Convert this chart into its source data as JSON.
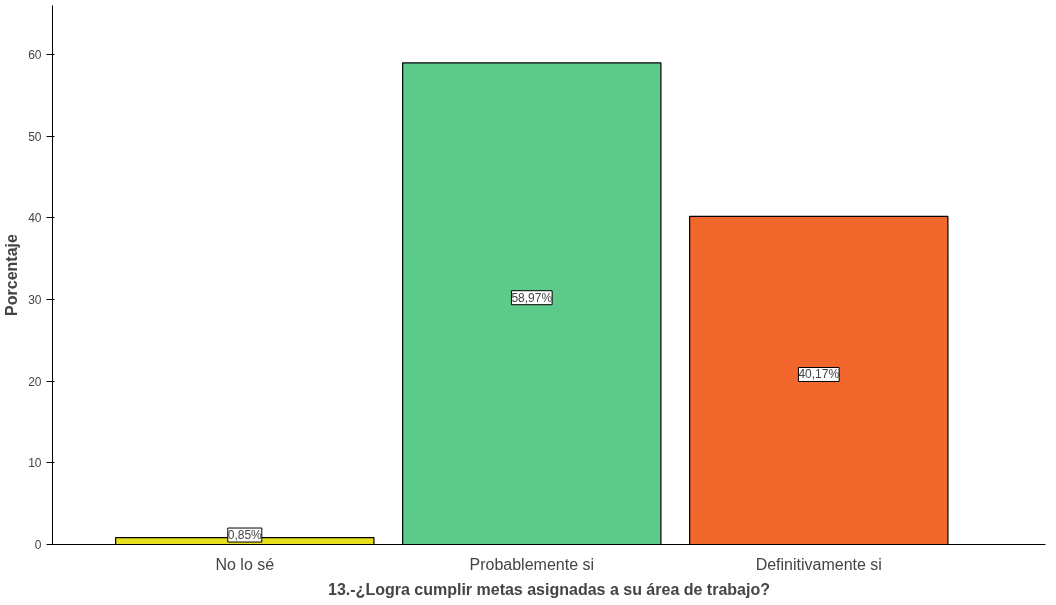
{
  "chart_data": {
    "type": "bar",
    "xlabel": "13.-¿Logra cumplir metas asignadas a su área de trabajo?",
    "ylabel": "Porcentaje",
    "categories": [
      "No lo sé",
      "Probablemente si",
      "Definitivamente si"
    ],
    "values": [
      0.85,
      58.97,
      40.17
    ],
    "colors": [
      "#e6e01e",
      "#5ccb8a",
      "#f2672b"
    ],
    "value_labels": [
      "0,85%",
      "58,97%",
      "40,17%"
    ],
    "ylim": [
      0,
      66
    ],
    "yticks": [
      0,
      10,
      20,
      30,
      40,
      50,
      60
    ],
    "grid": false
  }
}
